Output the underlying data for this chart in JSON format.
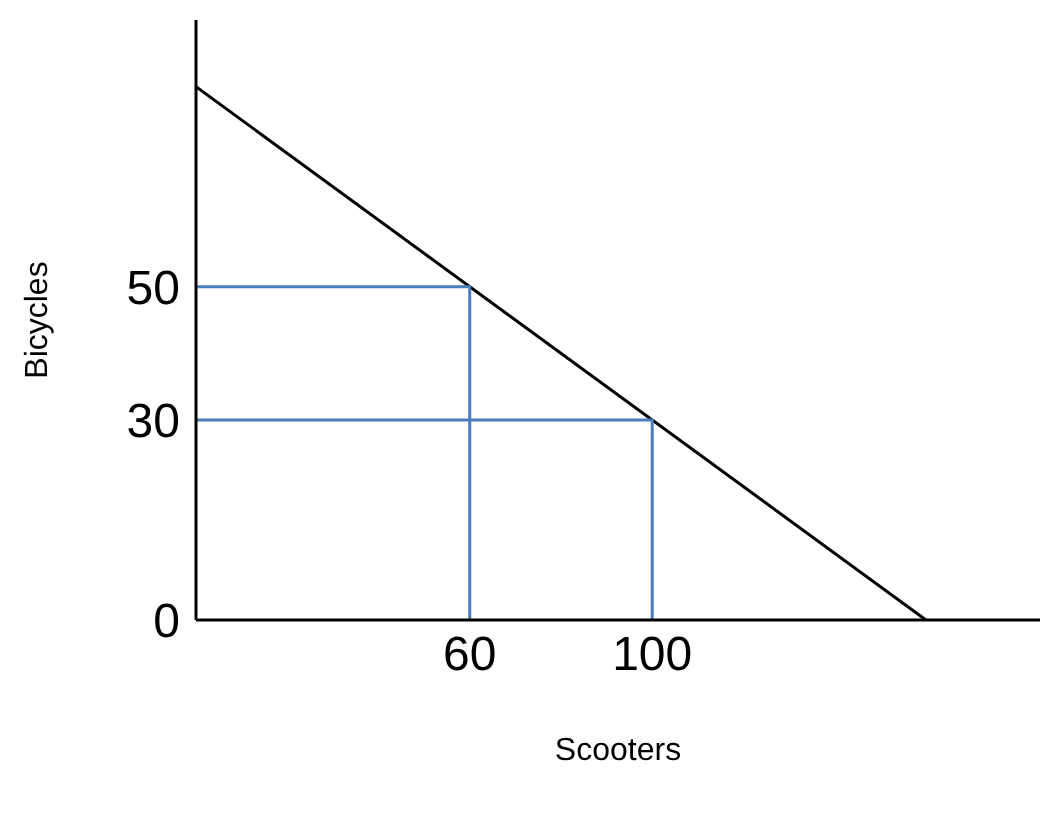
{
  "chart_data": {
    "type": "line",
    "xlabel": "Scooters",
    "ylabel": "Bicycles",
    "xlim": [
      0,
      185
    ],
    "ylim": [
      0,
      90
    ],
    "xticks": [
      60,
      100
    ],
    "yticks": [
      0,
      30,
      50
    ],
    "grid": false,
    "marker": "none",
    "line_style": "solid",
    "series": [
      {
        "color": "#000000",
        "x": [
          0,
          160
        ],
        "values": [
          80,
          0
        ]
      },
      {
        "color": "#4a7ebb",
        "x": [
          0,
          60,
          60
        ],
        "values": [
          50,
          50,
          0
        ]
      },
      {
        "color": "#4a7ebb",
        "x": [
          0,
          100,
          100
        ],
        "values": [
          30,
          30,
          0
        ]
      }
    ]
  }
}
